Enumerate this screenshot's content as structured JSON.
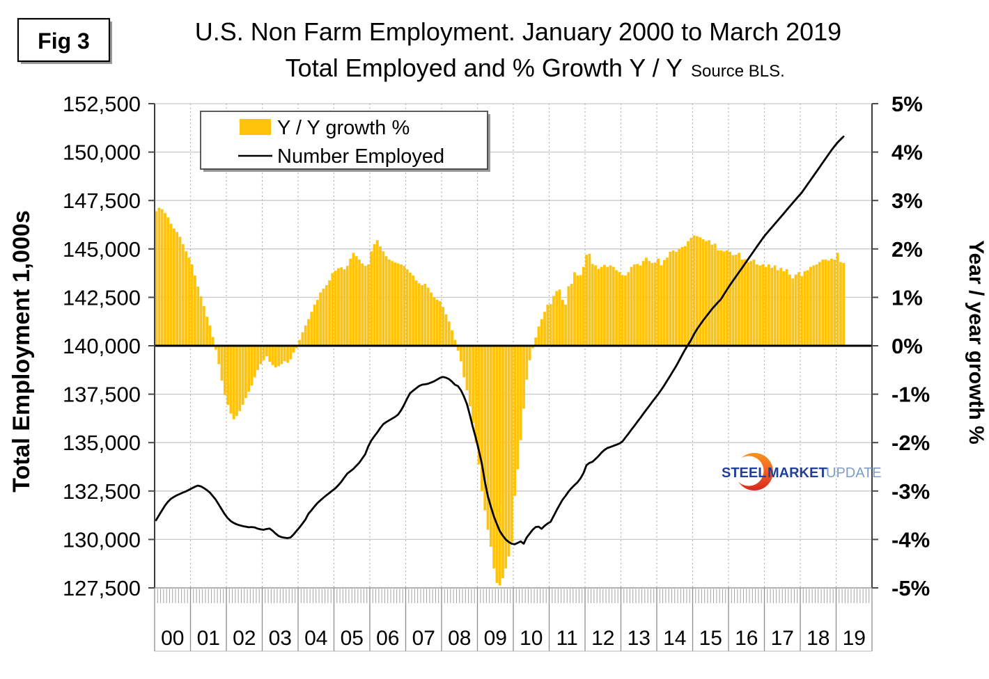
{
  "fig_label": "Fig 3",
  "title": {
    "line1": "U.S. Non Farm Employment. January 2000 to March 2019",
    "line2": "Total Employed and % Growth Y / Y",
    "source": "Source BLS."
  },
  "legend": {
    "bar_label": "Y / Y growth %",
    "line_label": "Number Employed"
  },
  "left_axis": {
    "title": "Total Employment 1,000s",
    "ticks": [
      "152,500",
      "150,000",
      "147,500",
      "145,000",
      "142,500",
      "140,000",
      "137,500",
      "135,000",
      "132,500",
      "130,000",
      "127,500"
    ]
  },
  "right_axis": {
    "title": "Year / year growth %",
    "ticks": [
      "5%",
      "4%",
      "3%",
      "2%",
      "1%",
      "0%",
      "-1%",
      "-2%",
      "-3%",
      "-4%",
      "-5%"
    ]
  },
  "x_axis": {
    "year_labels": [
      "00",
      "01",
      "02",
      "03",
      "04",
      "05",
      "06",
      "07",
      "08",
      "09",
      "10",
      "11",
      "12",
      "13",
      "14",
      "15",
      "16",
      "17",
      "18",
      "19"
    ]
  },
  "logo": {
    "word1": "STEEL",
    "word2": "MARKET",
    "word3": "UPDATE"
  },
  "colors": {
    "bar": "#FFC30B",
    "line": "#000000",
    "grid": "#c9c9c9",
    "grid_dotted": "#b0b0b0",
    "axis_dark": "#3c3c3c",
    "tick": "#4a4a4a",
    "comb": "#a3a3a3",
    "separator": "#8c8c8c",
    "logo_navy": "#21409A",
    "logo_steelblue": "#7C9DC9",
    "logo_orange_top": "#F7941E",
    "logo_orange_bottom": "#D7281E"
  },
  "chart_data": {
    "type": "bar+line (dual axis, monthly)",
    "x_start": "2000-01",
    "x_end": "2019-03",
    "x_years": [
      "00",
      "01",
      "02",
      "03",
      "04",
      "05",
      "06",
      "07",
      "08",
      "09",
      "10",
      "11",
      "12",
      "13",
      "14",
      "15",
      "16",
      "17",
      "18",
      "19"
    ],
    "left_axis": {
      "label": "Total Employment 1,000s",
      "min": 127500,
      "max": 152500,
      "tick_step": 2500
    },
    "right_axis": {
      "label": "Year / year growth %",
      "min": -5,
      "max": 5,
      "tick_step": 1,
      "unit": "%"
    },
    "grid": true,
    "legend_position": "top-left-inside",
    "series": [
      {
        "name": "Y / Y growth %",
        "type": "bar",
        "axis": "right",
        "values": [
          2.78,
          2.85,
          2.82,
          2.74,
          2.65,
          2.52,
          2.42,
          2.35,
          2.25,
          2.1,
          1.95,
          1.82,
          1.68,
          1.45,
          1.22,
          1.02,
          0.82,
          0.6,
          0.42,
          0.18,
          -0.08,
          -0.38,
          -0.72,
          -1.02,
          -1.22,
          -1.4,
          -1.52,
          -1.45,
          -1.35,
          -1.22,
          -1.08,
          -0.95,
          -0.82,
          -0.65,
          -0.5,
          -0.38,
          -0.3,
          -0.22,
          -0.33,
          -0.4,
          -0.45,
          -0.42,
          -0.38,
          -0.32,
          -0.35,
          -0.28,
          -0.14,
          -0.05,
          0.12,
          0.28,
          0.42,
          0.55,
          0.7,
          0.85,
          0.95,
          1.1,
          1.18,
          1.25,
          1.35,
          1.5,
          1.55,
          1.6,
          1.62,
          1.58,
          1.65,
          1.8,
          1.92,
          1.85,
          1.78,
          1.7,
          1.65,
          1.68,
          1.95,
          2.1,
          2.18,
          2.05,
          1.95,
          1.85,
          1.78,
          1.75,
          1.72,
          1.7,
          1.68,
          1.65,
          1.58,
          1.51,
          1.45,
          1.35,
          1.29,
          1.25,
          1.28,
          1.2,
          1.1,
          1.0,
          0.95,
          0.92,
          0.8,
          0.65,
          0.5,
          0.32,
          0.12,
          -0.1,
          -0.32,
          -0.65,
          -0.92,
          -1.25,
          -1.6,
          -2.0,
          -2.45,
          -3.0,
          -3.4,
          -3.8,
          -4.15,
          -4.6,
          -4.9,
          -4.95,
          -4.8,
          -4.6,
          -4.35,
          -4.05,
          -3.1,
          -2.55,
          -1.95,
          -1.3,
          -0.7,
          -0.3,
          -0.05,
          0.17,
          0.4,
          0.55,
          0.7,
          0.85,
          0.86,
          1.03,
          1.13,
          1.16,
          0.95,
          0.85,
          1.23,
          1.28,
          1.52,
          1.45,
          1.46,
          1.63,
          1.88,
          1.9,
          1.69,
          1.66,
          1.59,
          1.63,
          1.67,
          1.63,
          1.66,
          1.63,
          1.56,
          1.52,
          1.46,
          1.45,
          1.52,
          1.63,
          1.68,
          1.69,
          1.66,
          1.75,
          1.82,
          1.75,
          1.71,
          1.72,
          1.8,
          1.66,
          1.77,
          1.82,
          1.94,
          1.97,
          1.94,
          2.0,
          2.04,
          2.06,
          2.16,
          2.23,
          2.28,
          2.26,
          2.24,
          2.2,
          2.16,
          2.18,
          2.09,
          2.11,
          1.97,
          1.97,
          1.95,
          1.97,
          1.94,
          1.87,
          1.88,
          1.92,
          1.78,
          1.79,
          1.73,
          1.75,
          1.78,
          1.68,
          1.66,
          1.68,
          1.63,
          1.68,
          1.61,
          1.66,
          1.56,
          1.61,
          1.54,
          1.58,
          1.47,
          1.39,
          1.47,
          1.52,
          1.44,
          1.54,
          1.56,
          1.63,
          1.66,
          1.68,
          1.73,
          1.78,
          1.78,
          1.76,
          1.8,
          1.78,
          1.92,
          1.73,
          1.71
        ]
      },
      {
        "name": "Number Employed",
        "type": "line",
        "axis": "left",
        "values": [
          130990,
          131250,
          131500,
          131750,
          131950,
          132100,
          132200,
          132280,
          132350,
          132420,
          132480,
          132560,
          132640,
          132720,
          132780,
          132740,
          132650,
          132550,
          132420,
          132240,
          132050,
          131800,
          131550,
          131300,
          131100,
          130950,
          130850,
          130780,
          130730,
          130690,
          130660,
          130630,
          130640,
          130620,
          130560,
          130520,
          130500,
          130540,
          130560,
          130450,
          130300,
          130180,
          130120,
          130090,
          130070,
          130100,
          130250,
          130440,
          130620,
          130820,
          131030,
          131330,
          131510,
          131700,
          131880,
          132020,
          132150,
          132280,
          132400,
          132520,
          132640,
          132800,
          132980,
          133200,
          133400,
          133520,
          133640,
          133800,
          133960,
          134180,
          134400,
          134800,
          135100,
          135320,
          135520,
          135750,
          135950,
          136060,
          136150,
          136240,
          136330,
          136450,
          136670,
          136950,
          137270,
          137550,
          137680,
          137800,
          137920,
          137990,
          138010,
          138040,
          138100,
          138160,
          138250,
          138340,
          138390,
          138350,
          138280,
          138150,
          137990,
          137920,
          137700,
          137390,
          137000,
          136430,
          135800,
          135240,
          134600,
          133920,
          133000,
          132240,
          131700,
          131200,
          130800,
          130440,
          130200,
          130000,
          129870,
          129780,
          129750,
          129820,
          129900,
          129780,
          130100,
          130300,
          130500,
          130640,
          130660,
          130550,
          130700,
          130820,
          130910,
          131200,
          131500,
          131780,
          132050,
          132250,
          132470,
          132650,
          132800,
          132950,
          133150,
          133420,
          133830,
          133950,
          134010,
          134150,
          134300,
          134480,
          134620,
          134720,
          134770,
          134830,
          134890,
          134950,
          135050,
          135250,
          135450,
          135660,
          135860,
          136070,
          136270,
          136480,
          136690,
          136890,
          137100,
          137300,
          137500,
          137720,
          137950,
          138200,
          138450,
          138700,
          138950,
          139230,
          139520,
          139800,
          140050,
          140300,
          140600,
          140860,
          141080,
          141300,
          141500,
          141700,
          141900,
          142070,
          142240,
          142400,
          142650,
          142890,
          143130,
          143350,
          143570,
          143790,
          144010,
          144230,
          144450,
          144670,
          144890,
          145110,
          145330,
          145550,
          145750,
          145930,
          146110,
          146290,
          146470,
          146650,
          146830,
          147010,
          147190,
          147370,
          147550,
          147730,
          147900,
          148120,
          148340,
          148560,
          148780,
          149000,
          149220,
          149440,
          149660,
          149880,
          150100,
          150300,
          150490,
          150650,
          150800
        ]
      }
    ]
  }
}
